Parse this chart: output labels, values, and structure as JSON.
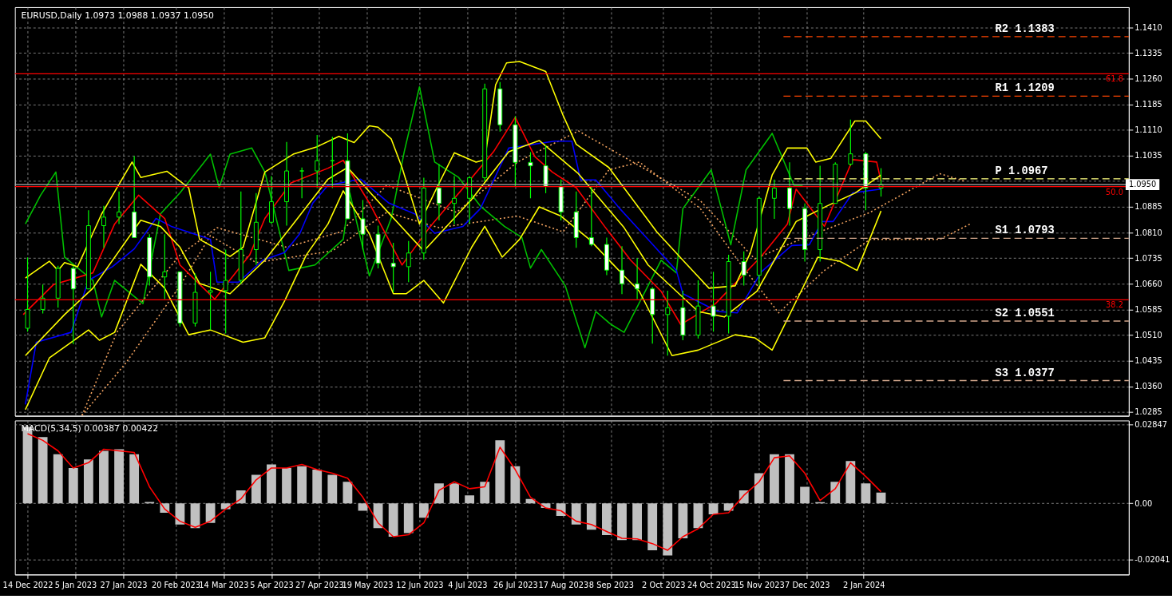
{
  "chart_data": [
    {
      "type": "candlestick",
      "title": "EURUSD,Daily  1.0973 1.0988 1.0937 1.0950",
      "x": [
        "2022-12-14",
        "2022-12-21",
        "2022-12-28",
        "2023-01-04",
        "2023-01-11",
        "2023-01-18",
        "2023-01-25",
        "2023-02-01",
        "2023-02-08",
        "2023-02-15",
        "2023-02-22",
        "2023-03-01",
        "2023-03-08",
        "2023-03-15",
        "2023-03-22",
        "2023-03-29",
        "2023-04-05",
        "2023-04-12",
        "2023-04-19",
        "2023-04-26",
        "2023-05-03",
        "2023-05-10",
        "2023-05-17",
        "2023-05-24",
        "2023-05-31",
        "2023-06-07",
        "2023-06-14",
        "2023-06-21",
        "2023-06-28",
        "2023-07-05",
        "2023-07-12",
        "2023-07-19",
        "2023-07-26",
        "2023-08-02",
        "2023-08-09",
        "2023-08-16",
        "2023-08-23",
        "2023-08-30",
        "2023-09-06",
        "2023-09-13",
        "2023-09-20",
        "2023-09-27",
        "2023-10-04",
        "2023-10-11",
        "2023-10-18",
        "2023-10-25",
        "2023-11-01",
        "2023-11-08",
        "2023-11-15",
        "2023-11-22",
        "2023-11-29",
        "2023-12-06",
        "2023-12-13",
        "2023-12-20",
        "2023-12-27",
        "2024-01-03",
        "2024-01-10"
      ],
      "ohlc": [
        [
          1.053,
          1.0737,
          1.052,
          1.0585
        ],
        [
          1.0585,
          1.0658,
          1.0573,
          1.0618
        ],
        [
          1.0618,
          1.0713,
          1.059,
          1.0705
        ],
        [
          1.0705,
          1.0713,
          1.0483,
          1.0645
        ],
        [
          1.0645,
          1.0875,
          1.0645,
          1.083
        ],
        [
          1.083,
          1.0888,
          1.0765,
          1.0855
        ],
        [
          1.0855,
          1.093,
          1.0835,
          1.087
        ],
        [
          1.087,
          1.1033,
          1.0795,
          1.0795
        ],
        [
          1.0795,
          1.0805,
          1.0655,
          1.068
        ],
        [
          1.068,
          1.0805,
          1.0615,
          1.0695
        ],
        [
          1.0695,
          1.0695,
          1.0535,
          1.0545
        ],
        [
          1.0545,
          1.069,
          1.0535,
          1.0635
        ],
        [
          1.0635,
          1.0695,
          1.0525,
          1.064
        ],
        [
          1.064,
          1.076,
          1.0515,
          1.067
        ],
        [
          1.067,
          1.093,
          1.066,
          1.076
        ],
        [
          1.076,
          1.0925,
          1.0715,
          1.084
        ],
        [
          1.084,
          1.0975,
          1.0835,
          1.09
        ],
        [
          1.09,
          1.1075,
          1.083,
          1.099
        ],
        [
          1.099,
          1.1,
          1.091,
          1.099
        ],
        [
          1.099,
          1.1095,
          1.094,
          1.102
        ],
        [
          1.102,
          1.109,
          1.094,
          1.102
        ],
        [
          1.102,
          1.11,
          1.085,
          1.085
        ],
        [
          1.085,
          1.0905,
          1.076,
          1.0805
        ],
        [
          1.0805,
          1.083,
          1.0705,
          1.072
        ],
        [
          1.072,
          1.078,
          1.0635,
          1.071
        ],
        [
          1.071,
          1.0785,
          1.0665,
          1.075
        ],
        [
          1.075,
          1.097,
          1.073,
          1.094
        ],
        [
          1.094,
          1.101,
          1.0845,
          1.0895
        ],
        [
          1.0895,
          1.0975,
          1.0835,
          1.091
        ],
        [
          1.091,
          1.0975,
          1.0835,
          1.097
        ],
        [
          1.097,
          1.1245,
          1.096,
          1.123
        ],
        [
          1.123,
          1.125,
          1.1105,
          1.1125
        ],
        [
          1.1125,
          1.115,
          1.0945,
          1.1015
        ],
        [
          1.1015,
          1.1045,
          1.091,
          1.1005
        ],
        [
          1.1005,
          1.1065,
          1.0925,
          1.0945
        ],
        [
          1.0945,
          1.0965,
          1.0845,
          1.087
        ],
        [
          1.087,
          1.093,
          1.0765,
          1.0795
        ],
        [
          1.0795,
          1.0945,
          1.077,
          1.0775
        ],
        [
          1.0775,
          1.0795,
          1.0685,
          1.07
        ],
        [
          1.07,
          1.077,
          1.063,
          1.066
        ],
        [
          1.066,
          1.0735,
          1.0615,
          1.0645
        ],
        [
          1.0645,
          1.065,
          1.0485,
          1.057
        ],
        [
          1.057,
          1.064,
          1.045,
          1.059
        ],
        [
          1.059,
          1.064,
          1.0495,
          1.051
        ],
        [
          1.051,
          1.067,
          1.05,
          1.0595
        ],
        [
          1.0595,
          1.0695,
          1.052,
          1.0565
        ],
        [
          1.0565,
          1.0745,
          1.0515,
          1.0725
        ],
        [
          1.0725,
          1.0755,
          1.0655,
          1.0685
        ],
        [
          1.0685,
          1.0915,
          1.0655,
          1.091
        ],
        [
          1.091,
          1.0965,
          1.085,
          1.094
        ],
        [
          1.094,
          1.1015,
          1.083,
          1.088
        ],
        [
          1.088,
          1.0895,
          1.0725,
          1.076
        ],
        [
          1.076,
          1.1005,
          1.0725,
          1.0895
        ],
        [
          1.0895,
          1.1015,
          1.0895,
          1.101
        ],
        [
          1.101,
          1.114,
          1.1005,
          1.104
        ],
        [
          1.104,
          1.1045,
          1.0875,
          1.094
        ],
        [
          1.094,
          1.0998,
          1.0915,
          1.095
        ]
      ],
      "xlim": [
        "2022-12-10",
        "2024-05-01"
      ],
      "ylim": [
        1.0274,
        1.1469
      ],
      "xticks": [
        {
          "value": "2022-12-14",
          "label": null
        },
        {
          "value": "2023-01-05",
          "label": null
        },
        {
          "value": "2023-01-27",
          "label": null
        },
        {
          "value": "2023-02-20",
          "label": null
        },
        {
          "value": "2023-03-14",
          "label": null
        },
        {
          "value": "2023-04-05",
          "label": null
        },
        {
          "value": "2023-04-27",
          "label": null
        },
        {
          "value": "2023-05-19",
          "label": null
        },
        {
          "value": "2023-06-12",
          "label": null
        },
        {
          "value": "2023-07-04",
          "label": null
        },
        {
          "value": "2023-07-26",
          "label": null
        },
        {
          "value": "2023-08-17",
          "label": null
        },
        {
          "value": "2023-09-08",
          "label": null
        },
        {
          "value": "2023-10-02",
          "label": null
        },
        {
          "value": "2023-10-24",
          "label": null
        },
        {
          "value": "2023-11-15",
          "label": null
        },
        {
          "value": "2023-12-07",
          "label": null
        },
        {
          "value": "2024-01-02",
          "label": null
        }
      ],
      "yticks": [
        1.0285,
        {
          "value": 1.036,
          "label": "1.0360"
        },
        1.0435,
        {
          "value": 1.051,
          "label": "1.0510"
        },
        1.0585,
        {
          "value": 1.066,
          "label": "1.0660"
        },
        1.0735,
        {
          "value": 1.081,
          "label": "1.0810"
        },
        1.0885,
        {
          "value": 1.096,
          "label": null
        },
        1.1035,
        {
          "value": 1.111,
          "label": "1.1110"
        },
        1.1185,
        {
          "value": 1.126,
          "label": "1.1260"
        },
        1.1335,
        {
          "value": 1.141,
          "label": "1.1410"
        }
      ],
      "grid": true,
      "tick_labels": "y",
      "series": [
        {
          "type": "line",
          "color": "#f4a460",
          "line_style": "dotted",
          "x": [
            "2023-01-08",
            "2023-01-28",
            "2023-02-22",
            "2023-03-08",
            "2023-03-29",
            "2023-05-03",
            "2023-05-28",
            "2023-06-21",
            "2023-07-27",
            "2023-08-17",
            "2023-09-07",
            "2023-09-21",
            "2023-10-19",
            "2023-11-06",
            "2023-11-24",
            "2023-12-15",
            "2024-01-05",
            "2024-02-06",
            "2024-02-20"
          ],
          "values": [
            1.0275,
            1.0427,
            1.0654,
            1.0801,
            1.0722,
            1.0756,
            1.0869,
            1.0824,
            1.0858,
            1.0812,
            1.0993,
            1.1016,
            1.088,
            1.0722,
            1.0575,
            1.0699,
            1.079,
            1.079,
            1.0835
          ]
        },
        {
          "type": "line",
          "color": "#f4a460",
          "line_style": "dotted",
          "x": [
            "2023-01-08",
            "2023-01-24",
            "2023-02-22",
            "2023-03-11",
            "2023-04-12",
            "2023-05-07",
            "2023-05-28",
            "2023-06-29",
            "2023-07-27",
            "2023-08-24",
            "2023-09-18",
            "2023-10-19",
            "2023-11-13",
            "2023-12-04",
            "2024-01-05",
            "2024-02-06",
            "2024-02-18"
          ],
          "values": [
            1.0275,
            1.0518,
            1.0744,
            1.0824,
            1.0767,
            1.0812,
            1.0948,
            1.0869,
            1.1016,
            1.1107,
            1.1016,
            1.0903,
            1.0733,
            1.079,
            1.0869,
            1.0982,
            1.0959
          ]
        },
        {
          "type": "line",
          "color": "#00c000",
          "line_style": "solid",
          "x": [
            "2022-12-13",
            "2022-12-20",
            "2022-12-27",
            "2022-12-31",
            "2023-01-13",
            "2023-01-17",
            "2023-01-23",
            "2023-02-05",
            "2023-02-13",
            "2023-02-22",
            "2023-03-08",
            "2023-03-12",
            "2023-03-17",
            "2023-03-27",
            "2023-04-02",
            "2023-04-13",
            "2023-04-25",
            "2023-05-08",
            "2023-05-11",
            "2023-05-20",
            "2023-05-30",
            "2023-06-05",
            "2023-06-12",
            "2023-06-19",
            "2023-06-30",
            "2023-07-10",
            "2023-07-21",
            "2023-07-29",
            "2023-08-02",
            "2023-08-07",
            "2023-08-18",
            "2023-08-27",
            "2023-09-01",
            "2023-09-08",
            "2023-09-14",
            "2023-10-01",
            "2023-10-08",
            "2023-10-11",
            "2023-10-24",
            "2023-11-02",
            "2023-11-09",
            "2023-11-21",
            "2023-12-01",
            "2023-12-05"
          ],
          "values": [
            1.0835,
            1.0919,
            1.0987,
            1.0738,
            1.067,
            1.0563,
            1.067,
            1.0602,
            1.0864,
            1.0926,
            1.1039,
            1.0941,
            1.1039,
            1.1057,
            1.0987,
            1.0699,
            1.0715,
            1.079,
            1.0926,
            1.0683,
            1.0851,
            1.1046,
            1.1236,
            1.1016,
            1.0971,
            1.0887,
            1.0828,
            1.0796,
            1.0706,
            1.076,
            1.0654,
            1.0473,
            1.0579,
            1.0541,
            1.0518,
            1.0729,
            1.0692,
            1.088,
            1.0993,
            1.0774,
            1.0993,
            1.11,
            1.0948,
            1.0948
          ]
        },
        {
          "type": "line",
          "color": "#0000ff",
          "line_style": "solid",
          "x": [
            "2022-12-13",
            "2022-12-18",
            "2023-01-03",
            "2023-01-11",
            "2023-01-22",
            "2023-02-01",
            "2023-02-11",
            "2023-02-18",
            "2023-03-08",
            "2023-03-11",
            "2023-03-21",
            "2023-04-01",
            "2023-04-11",
            "2023-04-18",
            "2023-04-24",
            "2023-05-01",
            "2023-05-16",
            "2023-05-29",
            "2023-06-10",
            "2023-06-19",
            "2023-07-02",
            "2023-07-10",
            "2023-07-23",
            "2023-08-13",
            "2023-08-21",
            "2023-08-25",
            "2023-09-01",
            "2023-09-12",
            "2023-09-26",
            "2023-10-08",
            "2023-10-11",
            "2023-10-27",
            "2023-11-05",
            "2023-11-16",
            "2023-11-30",
            "2023-12-08",
            "2023-12-14",
            "2023-12-19",
            "2023-12-28",
            "2024-01-10"
          ],
          "values": [
            1.0307,
            1.0489,
            1.0518,
            1.067,
            1.071,
            1.0762,
            1.0851,
            1.0828,
            1.079,
            1.0665,
            1.0665,
            1.0729,
            1.0751,
            1.0806,
            1.0896,
            1.0948,
            1.0966,
            1.0896,
            1.0864,
            1.0808,
            1.0828,
            1.088,
            1.1057,
            1.1077,
            1.1077,
            1.0964,
            1.0964,
            1.088,
            1.0783,
            1.0699,
            1.0631,
            1.0579,
            1.0575,
            1.0695,
            1.0772,
            1.0774,
            1.0842,
            1.0842,
            1.0926,
            1.0937
          ]
        },
        {
          "type": "line",
          "color": "#ff0000",
          "line_style": "solid",
          "x": [
            "2022-12-12",
            "2022-12-26",
            "2023-01-13",
            "2023-01-23",
            "2023-02-03",
            "2023-02-15",
            "2023-02-22",
            "2023-03-10",
            "2023-03-26",
            "2023-04-02",
            "2023-04-14",
            "2023-05-01",
            "2023-05-08",
            "2023-05-20",
            "2023-06-04",
            "2023-06-17",
            "2023-07-01",
            "2023-07-16",
            "2023-07-26",
            "2023-08-04",
            "2023-08-12",
            "2023-08-23",
            "2023-09-05",
            "2023-09-17",
            "2023-10-01",
            "2023-10-10",
            "2023-10-26",
            "2023-11-16",
            "2023-11-28",
            "2023-12-02",
            "2023-12-15",
            "2023-12-28",
            "2024-01-08",
            "2024-01-10"
          ],
          "values": [
            1.057,
            1.0658,
            1.0692,
            1.0835,
            1.0919,
            1.0851,
            1.0715,
            1.0615,
            1.0744,
            1.0851,
            1.0955,
            1.0998,
            1.1021,
            1.0896,
            1.0715,
            1.0828,
            1.0932,
            1.1046,
            1.1147,
            1.1032,
            1.0987,
            1.0941,
            1.0828,
            1.0729,
            1.0638,
            1.0541,
            1.0602,
            1.074,
            1.0835,
            1.0937,
            1.0828,
            1.1023,
            1.1016,
            1.0959
          ]
        },
        {
          "type": "line",
          "color": "#ffff00",
          "line_style": "solid",
          "x": [
            "2022-12-13",
            "2022-12-24",
            "2022-12-28",
            "2022-12-31",
            "2023-01-06",
            "2023-01-17",
            "2023-01-31",
            "2023-02-04",
            "2023-02-16",
            "2023-02-26",
            "2023-03-03",
            "2023-03-17",
            "2023-03-23",
            "2023-04-02",
            "2023-04-15",
            "2023-04-26",
            "2023-05-06",
            "2023-05-13",
            "2023-05-20",
            "2023-05-24",
            "2023-05-30",
            "2023-06-04",
            "2023-06-12",
            "2023-06-20",
            "2023-06-28",
            "2023-07-08",
            "2023-07-12",
            "2023-07-17",
            "2023-07-22",
            "2023-07-28",
            "2023-08-09",
            "2023-08-17",
            "2023-08-23",
            "2023-09-07",
            "2023-09-29",
            "2023-10-12",
            "2023-10-23",
            "2023-11-04",
            "2023-11-11",
            "2023-11-21",
            "2023-11-28",
            "2023-12-07",
            "2023-12-11",
            "2023-12-18",
            "2023-12-29",
            "2024-01-03",
            "2024-01-10"
          ],
          "values": [
            1.0677,
            1.0726,
            1.0699,
            1.0722,
            1.071,
            1.0864,
            1.1016,
            1.0971,
            1.0989,
            1.0941,
            1.079,
            1.074,
            1.0767,
            1.0987,
            1.1039,
            1.1061,
            1.1091,
            1.1073,
            1.1122,
            1.1118,
            1.1084,
            1.1,
            1.0835,
            1.0941,
            1.1043,
            1.1016,
            1.1023,
            1.1242,
            1.1306,
            1.131,
            1.1281,
            1.1152,
            1.1068,
            1.1,
            1.0812,
            1.0722,
            1.0647,
            1.0654,
            1.0751,
            1.0978,
            1.1057,
            1.1057,
            1.1016,
            1.1027,
            1.1136,
            1.1136,
            1.1084
          ]
        },
        {
          "type": "line",
          "color": "#ffff00",
          "line_style": "solid",
          "x": [
            "2022-12-13",
            "2022-12-31",
            "2023-01-13",
            "2023-02-04",
            "2023-02-13",
            "2023-02-22",
            "2023-03-03",
            "2023-03-17",
            "2023-04-02",
            "2023-04-15",
            "2023-05-01",
            "2023-05-10",
            "2023-05-27",
            "2023-06-14",
            "2023-07-06",
            "2023-07-23",
            "2023-08-06",
            "2023-08-24",
            "2023-09-14",
            "2023-09-25",
            "2023-10-18",
            "2023-10-30",
            "2023-11-14",
            "2023-12-02",
            "2023-12-16",
            "2023-12-29",
            "2024-01-10"
          ],
          "values": [
            1.045,
            1.057,
            1.0647,
            1.0846,
            1.0828,
            1.0767,
            1.0661,
            1.0631,
            1.0729,
            1.0835,
            1.0966,
            1.1,
            1.088,
            1.0756,
            1.0907,
            1.1046,
            1.1079,
            1.0982,
            1.0824,
            1.0715,
            1.0579,
            1.0563,
            1.0638,
            1.0842,
            1.0887,
            1.0925,
            1.0978
          ]
        },
        {
          "type": "line",
          "color": "#ffff00",
          "line_style": "solid",
          "x": [
            "2022-12-13",
            "2022-12-24",
            "2023-01-11",
            "2023-01-16",
            "2023-01-23",
            "2023-02-04",
            "2023-02-15",
            "2023-02-26",
            "2023-03-08",
            "2023-03-23",
            "2023-04-02",
            "2023-04-11",
            "2023-04-21",
            "2023-05-01",
            "2023-05-08",
            "2023-05-20",
            "2023-05-31",
            "2023-06-06",
            "2023-06-14",
            "2023-06-23",
            "2023-07-06",
            "2023-07-12",
            "2023-07-20",
            "2023-07-28",
            "2023-08-06",
            "2023-08-16",
            "2023-08-29",
            "2023-09-14",
            "2023-09-21",
            "2023-10-06",
            "2023-10-18",
            "2023-11-04",
            "2023-11-13",
            "2023-11-21",
            "2023-12-12",
            "2023-12-22",
            "2023-12-30",
            "2024-01-10"
          ],
          "values": [
            1.0292,
            1.0443,
            1.0525,
            1.0495,
            1.0518,
            1.0717,
            1.0647,
            1.0511,
            1.0525,
            1.0489,
            1.0502,
            1.0609,
            1.0744,
            1.0835,
            1.0932,
            1.0806,
            1.0631,
            1.0631,
            1.067,
            1.0604,
            1.0767,
            1.0828,
            1.0738,
            1.079,
            1.0885,
            1.0858,
            1.079,
            1.0683,
            1.0638,
            1.045,
            1.0466,
            1.0511,
            1.0502,
            1.0466,
            1.0738,
            1.0726,
            1.0699,
            1.0873
          ]
        }
      ],
      "ref_lines": [
        {
          "axis": "y",
          "value": 1.1383,
          "label": "R2 1.1383",
          "color": "#ff4500",
          "line_style": "dashed"
        },
        {
          "axis": "y",
          "value": 1.1209,
          "label": "R1 1.1209",
          "color": "#ff4500",
          "line_style": "dashed"
        },
        {
          "axis": "y",
          "value": 1.0967,
          "label": "P 1.0967",
          "color": "#ffff80",
          "line_style": "dashed"
        },
        {
          "axis": "y",
          "value": 1.0793,
          "label": "S1 1.0793",
          "color": "#d2a68c",
          "line_style": "dashed"
        },
        {
          "axis": "y",
          "value": 1.0551,
          "label": "S2 1.0551",
          "color": "#d2a68c",
          "line_style": "dashed"
        },
        {
          "axis": "y",
          "value": 1.0377,
          "label": "S3 1.0377",
          "color": "#d2a68c",
          "line_style": "dashed"
        },
        {
          "axis": "y",
          "value": 1.1274,
          "color": "#ff0000",
          "line_style": "solid"
        },
        {
          "axis": "y",
          "value": 1.0944,
          "color": "#ff0000",
          "line_style": "solid"
        },
        {
          "axis": "y",
          "value": 1.0613,
          "color": "#ff0000",
          "line_style": "solid"
        },
        {
          "axis": "y",
          "value": 1.095,
          "color": "#b0b0b0",
          "line_style": "solid"
        }
      ],
      "annotations": [
        {
          "text": "1.0950",
          "x": "2024-05-01",
          "y": 1.095
        },
        {
          "text": "61.8",
          "x": "2024-05-01",
          "y": 1.1274
        },
        {
          "text": "50.0",
          "x": "2024-05-01",
          "y": 1.0944
        },
        {
          "text": "38.2",
          "x": "2024-05-01",
          "y": 1.0613
        }
      ]
    },
    {
      "type": "bar",
      "title": "MACD(5,34,5) 0.00387 0.00422",
      "x": [
        "2022-12-14",
        "2022-12-21",
        "2022-12-28",
        "2023-01-04",
        "2023-01-11",
        "2023-01-18",
        "2023-01-25",
        "2023-02-01",
        "2023-02-08",
        "2023-02-15",
        "2023-02-22",
        "2023-03-01",
        "2023-03-08",
        "2023-03-15",
        "2023-03-22",
        "2023-03-29",
        "2023-04-05",
        "2023-04-12",
        "2023-04-19",
        "2023-04-26",
        "2023-05-03",
        "2023-05-10",
        "2023-05-17",
        "2023-05-24",
        "2023-05-31",
        "2023-06-07",
        "2023-06-14",
        "2023-06-21",
        "2023-06-28",
        "2023-07-05",
        "2023-07-12",
        "2023-07-19",
        "2023-07-26",
        "2023-08-02",
        "2023-08-09",
        "2023-08-16",
        "2023-08-23",
        "2023-08-30",
        "2023-09-06",
        "2023-09-13",
        "2023-09-20",
        "2023-09-27",
        "2023-10-04",
        "2023-10-11",
        "2023-10-18",
        "2023-10-25",
        "2023-11-01",
        "2023-11-08",
        "2023-11-15",
        "2023-11-22",
        "2023-11-29",
        "2023-12-06",
        "2023-12-13",
        "2023-12-20",
        "2023-12-27",
        "2024-01-03",
        "2024-01-10"
      ],
      "xlim": [
        "2022-12-10",
        "2024-05-01"
      ],
      "ylim": [
        -0.0258,
        0.03
      ],
      "xticks": [
        {
          "value": "2022-12-14",
          "label": "14 Dec 2022"
        },
        {
          "value": "2023-01-05",
          "label": "5 Jan 2023"
        },
        {
          "value": "2023-01-27",
          "label": "27 Jan 2023"
        },
        {
          "value": "2023-02-20",
          "label": "20 Feb 2023"
        },
        {
          "value": "2023-03-14",
          "label": "14 Mar 2023"
        },
        {
          "value": "2023-04-05",
          "label": "5 Apr 2023"
        },
        {
          "value": "2023-04-27",
          "label": "27 Apr 2023"
        },
        {
          "value": "2023-05-19",
          "label": "19 May 2023"
        },
        {
          "value": "2023-06-12",
          "label": "12 Jun 2023"
        },
        {
          "value": "2023-07-04",
          "label": "4 Jul 2023"
        },
        {
          "value": "2023-07-26",
          "label": "26 Jul 2023"
        },
        {
          "value": "2023-08-17",
          "label": "17 Aug 2023"
        },
        {
          "value": "2023-09-08",
          "label": "8 Sep 2023"
        },
        {
          "value": "2023-10-02",
          "label": "2 Oct 2023"
        },
        {
          "value": "2023-10-24",
          "label": "24 Oct 2023"
        },
        {
          "value": "2023-11-15",
          "label": "15 Nov 2023"
        },
        {
          "value": "2023-12-07",
          "label": "7 Dec 2023"
        },
        {
          "value": "2024-01-02",
          "label": "2 Jan 2024"
        }
      ],
      "yticks": [
        0.02847,
        {
          "value": 0,
          "label": "0.00"
        },
        -0.02041
      ],
      "grid": true,
      "series": [
        {
          "type": "bar",
          "color": "#c0c0c0",
          "values": [
            0.0277,
            0.024,
            0.0178,
            0.0128,
            0.0159,
            0.019,
            0.0196,
            0.0178,
            0.0005,
            -0.0034,
            -0.0077,
            -0.009,
            -0.0071,
            -0.0021,
            0.0047,
            0.0103,
            0.0141,
            0.0128,
            0.0134,
            0.0122,
            0.0103,
            0.0078,
            -0.0027,
            -0.009,
            -0.0121,
            -0.0108,
            -0.0052,
            0.0072,
            0.0072,
            0.0029,
            0.0078,
            0.0228,
            0.0134,
            0.0016,
            -0.0017,
            -0.0046,
            -0.0077,
            -0.0096,
            -0.0115,
            -0.0133,
            -0.0133,
            -0.017,
            -0.0189,
            -0.0127,
            -0.009,
            -0.004,
            -0.0027,
            0.0047,
            0.0109,
            0.0178,
            0.0178,
            0.006,
            0.0004,
            0.0078,
            0.0153,
            0.0072,
            0.0039
          ]
        },
        {
          "type": "line",
          "color": "#ff0000",
          "line_style": "solid",
          "values": [
            0.0252,
            0.0228,
            0.019,
            0.0128,
            0.0147,
            0.0196,
            0.019,
            0.0184,
            0.006,
            -0.0021,
            -0.0065,
            -0.0087,
            -0.0065,
            -0.0021,
            0.0016,
            0.0085,
            0.0128,
            0.0128,
            0.0141,
            0.0122,
            0.0109,
            0.0091,
            0.0022,
            -0.0071,
            -0.0121,
            -0.0114,
            -0.0071,
            0.0047,
            0.0078,
            0.0053,
            0.006,
            0.0203,
            0.0122,
            0.0022,
            -0.0017,
            -0.0027,
            -0.0065,
            -0.0077,
            -0.0102,
            -0.0127,
            -0.0129,
            -0.0146,
            -0.017,
            -0.0121,
            -0.0092,
            -0.004,
            -0.0034,
            0.0029,
            0.0078,
            0.0165,
            0.0172,
            0.0109,
            0.001,
            0.0053,
            0.0147,
            0.0097,
            0.0042
          ]
        }
      ]
    }
  ]
}
